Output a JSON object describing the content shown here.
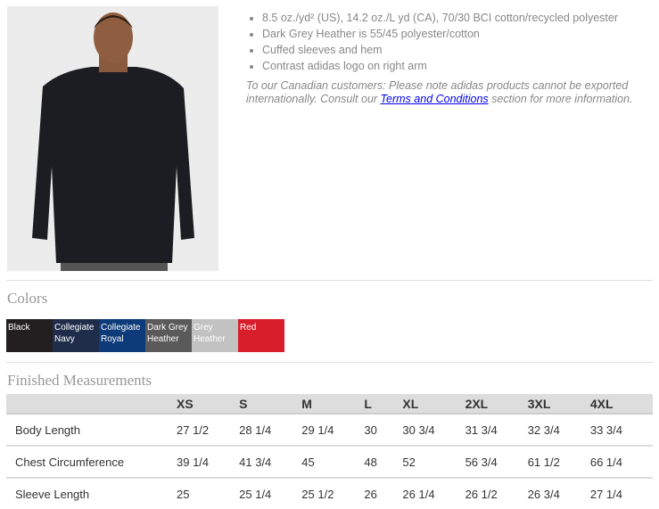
{
  "product": {
    "features": [
      "8.5 oz./yd² (US), 14.2 oz./L yd (CA), 70/30 BCI cotton/recycled polyester",
      "Dark Grey Heather is 55/45 polyester/cotton",
      "Cuffed sleeves and hem",
      "Contrast adidas logo on right arm"
    ],
    "note_before": "To our Canadian customers: Please note adidas products cannot be exported internationally. Consult our ",
    "note_link": "Terms and Conditions",
    "note_after": " section for more information."
  },
  "colors": {
    "heading": "Colors",
    "swatches": [
      {
        "label": "Black",
        "hex": "#231f20"
      },
      {
        "label": "Collegiate Navy",
        "hex": "#1f2d4b"
      },
      {
        "label": "Collegiate Royal",
        "hex": "#0d3a78"
      },
      {
        "label": "Dark Grey Heather",
        "hex": "#5a5a5a"
      },
      {
        "label": "Grey Heather",
        "hex": "#c2c2c2"
      },
      {
        "label": "Red",
        "hex": "#d81e2b"
      }
    ]
  },
  "measurements": {
    "heading": "Finished Measurements",
    "sizes": [
      "XS",
      "S",
      "M",
      "L",
      "XL",
      "2XL",
      "3XL",
      "4XL"
    ],
    "rows": [
      {
        "label": "Body Length",
        "values": [
          "27 1/2",
          "28 1/4",
          "29 1/4",
          "30",
          "30 3/4",
          "31 3/4",
          "32 3/4",
          "33 3/4"
        ]
      },
      {
        "label": "Chest Circumference",
        "values": [
          "39 1/4",
          "41 3/4",
          "45",
          "48",
          "52",
          "56 3/4",
          "61 1/2",
          "66 1/4"
        ]
      },
      {
        "label": "Sleeve Length",
        "values": [
          "25",
          "25 1/4",
          "25 1/2",
          "26",
          "26 1/4",
          "26 1/2",
          "26 3/4",
          "27 1/4"
        ]
      }
    ]
  }
}
